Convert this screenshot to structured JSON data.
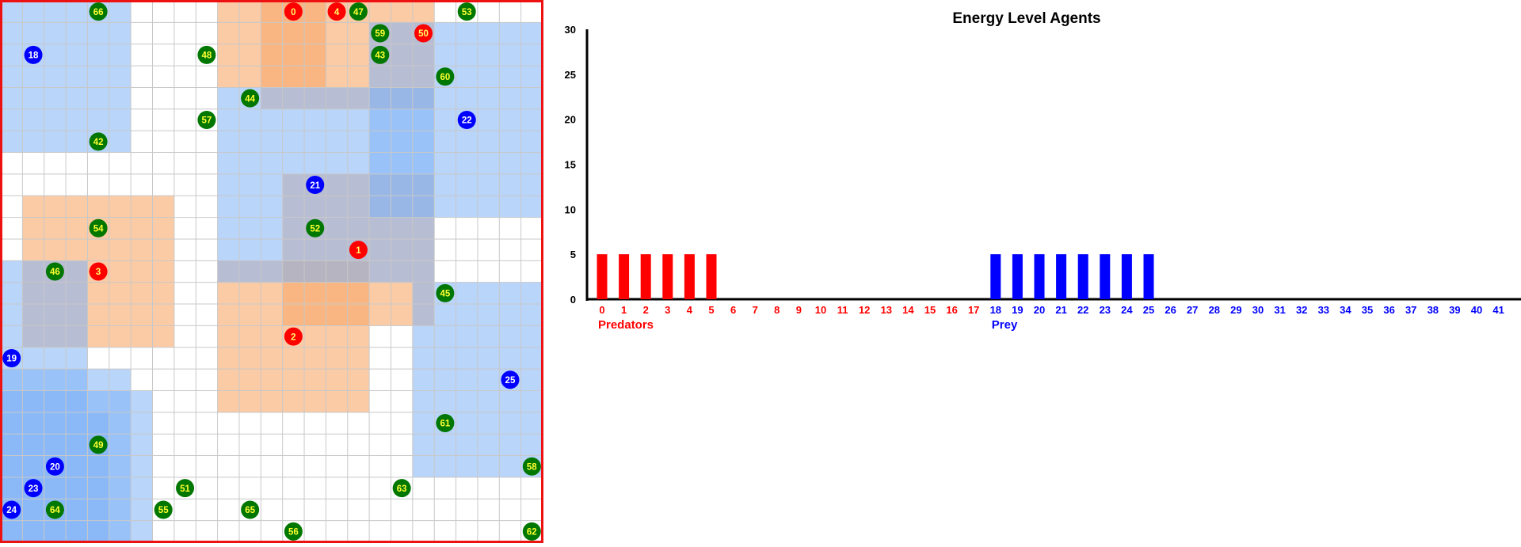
{
  "grid_world": {
    "cols": 25,
    "rows": 25,
    "colors": {
      "predator": "#ff0000",
      "prey": "#0000ff",
      "plant": "#007700",
      "border": "#ee1111",
      "grid_line": "#c8c8c8",
      "predator_vision": "#f9a86a",
      "prey_vision": "#7fb2f5",
      "predator_label": "#ffff66",
      "plant_label": "#ffff33",
      "prey_label": "#ffffff"
    },
    "predator_vision_areas": [
      {
        "c0": 10,
        "r0": 0,
        "c1": 14,
        "r1": 3
      },
      {
        "c0": 12,
        "r0": 0,
        "c1": 19,
        "r1": 4
      },
      {
        "c0": 1,
        "r0": 9,
        "c1": 7,
        "r1": 15
      },
      {
        "c0": 13,
        "r0": 8,
        "c1": 19,
        "r1": 14
      },
      {
        "c0": 10,
        "r0": 12,
        "c1": 16,
        "r1": 18
      }
    ],
    "prey_vision_areas": [
      {
        "c0": 0,
        "r0": 0,
        "c1": 5,
        "r1": 6
      },
      {
        "c0": 10,
        "r0": 4,
        "c1": 19,
        "r1": 12
      },
      {
        "c0": 17,
        "r0": 1,
        "c1": 24,
        "r1": 9
      },
      {
        "c0": -3,
        "r0": 12,
        "c1": 3,
        "r1": 18
      },
      {
        "c0": 19,
        "r0": 13,
        "c1": 24,
        "r1": 21
      },
      {
        "c0": -1,
        "r0": 17,
        "c1": 5,
        "r1": 24
      },
      {
        "c0": -1,
        "r0": 18,
        "c1": 6,
        "r1": 24
      },
      {
        "c0": -2,
        "r0": 19,
        "c1": 4,
        "r1": 24
      }
    ],
    "predators": [
      {
        "id": "0",
        "col": 13,
        "row": 0
      },
      {
        "id": "4",
        "col": 15,
        "row": 0
      },
      {
        "id": "50",
        "col": 19,
        "row": 1
      },
      {
        "id": "1",
        "col": 16,
        "row": 11
      },
      {
        "id": "3",
        "col": 4,
        "row": 12
      },
      {
        "id": "2",
        "col": 13,
        "row": 15
      }
    ],
    "prey": [
      {
        "id": "18",
        "col": 1,
        "row": 2
      },
      {
        "id": "22",
        "col": 21,
        "row": 5
      },
      {
        "id": "21",
        "col": 14,
        "row": 8
      },
      {
        "id": "19",
        "col": 0,
        "row": 16
      },
      {
        "id": "25",
        "col": 23,
        "row": 17
      },
      {
        "id": "20",
        "col": 2,
        "row": 21
      },
      {
        "id": "23",
        "col": 1,
        "row": 22
      },
      {
        "id": "24",
        "col": 0,
        "row": 23
      }
    ],
    "plants": [
      {
        "id": "66",
        "col": 4,
        "row": 0
      },
      {
        "id": "47",
        "col": 16,
        "row": 0
      },
      {
        "id": "53",
        "col": 21,
        "row": 0
      },
      {
        "id": "59",
        "col": 17,
        "row": 1
      },
      {
        "id": "48",
        "col": 9,
        "row": 2
      },
      {
        "id": "43",
        "col": 17,
        "row": 2
      },
      {
        "id": "60",
        "col": 20,
        "row": 3
      },
      {
        "id": "44",
        "col": 11,
        "row": 4
      },
      {
        "id": "57",
        "col": 9,
        "row": 5
      },
      {
        "id": "42",
        "col": 4,
        "row": 6
      },
      {
        "id": "54",
        "col": 4,
        "row": 10
      },
      {
        "id": "52",
        "col": 14,
        "row": 10
      },
      {
        "id": "46",
        "col": 2,
        "row": 12
      },
      {
        "id": "45",
        "col": 20,
        "row": 13
      },
      {
        "id": "61",
        "col": 20,
        "row": 19
      },
      {
        "id": "49",
        "col": 4,
        "row": 20
      },
      {
        "id": "58",
        "col": 24,
        "row": 21
      },
      {
        "id": "51",
        "col": 8,
        "row": 22
      },
      {
        "id": "63",
        "col": 18,
        "row": 22
      },
      {
        "id": "64",
        "col": 2,
        "row": 23
      },
      {
        "id": "55",
        "col": 7,
        "row": 23
      },
      {
        "id": "65",
        "col": 11,
        "row": 23
      },
      {
        "id": "56",
        "col": 13,
        "row": 24
      },
      {
        "id": "62",
        "col": 24,
        "row": 24
      }
    ]
  },
  "chart_data": {
    "type": "bar",
    "title": "Energy Level Agents",
    "xlabel": "",
    "ylabel": "",
    "ylim": [
      0,
      30
    ],
    "yticks": [
      "0",
      "5",
      "10",
      "15",
      "20",
      "25",
      "30"
    ],
    "categories": [
      "0",
      "1",
      "2",
      "3",
      "4",
      "5",
      "6",
      "7",
      "8",
      "9",
      "10",
      "11",
      "12",
      "13",
      "14",
      "15",
      "16",
      "17",
      "18",
      "19",
      "20",
      "21",
      "22",
      "23",
      "24",
      "25",
      "26",
      "27",
      "28",
      "29",
      "30",
      "31",
      "32",
      "33",
      "34",
      "35",
      "36",
      "37",
      "38",
      "39",
      "40",
      "41"
    ],
    "groups": [
      {
        "label": "Predators",
        "color": "#ff0000",
        "from": 0,
        "to": 17
      },
      {
        "label": "Prey",
        "color": "#0000ff",
        "from": 18,
        "to": 41
      }
    ],
    "values": [
      5,
      5,
      5,
      5,
      5,
      5,
      0,
      0,
      0,
      0,
      0,
      0,
      0,
      0,
      0,
      0,
      0,
      0,
      5,
      5,
      5,
      5,
      5,
      5,
      5,
      5,
      0,
      0,
      0,
      0,
      0,
      0,
      0,
      0,
      0,
      0,
      0,
      0,
      0,
      0,
      0,
      0
    ],
    "grid": false,
    "legend": "none"
  }
}
